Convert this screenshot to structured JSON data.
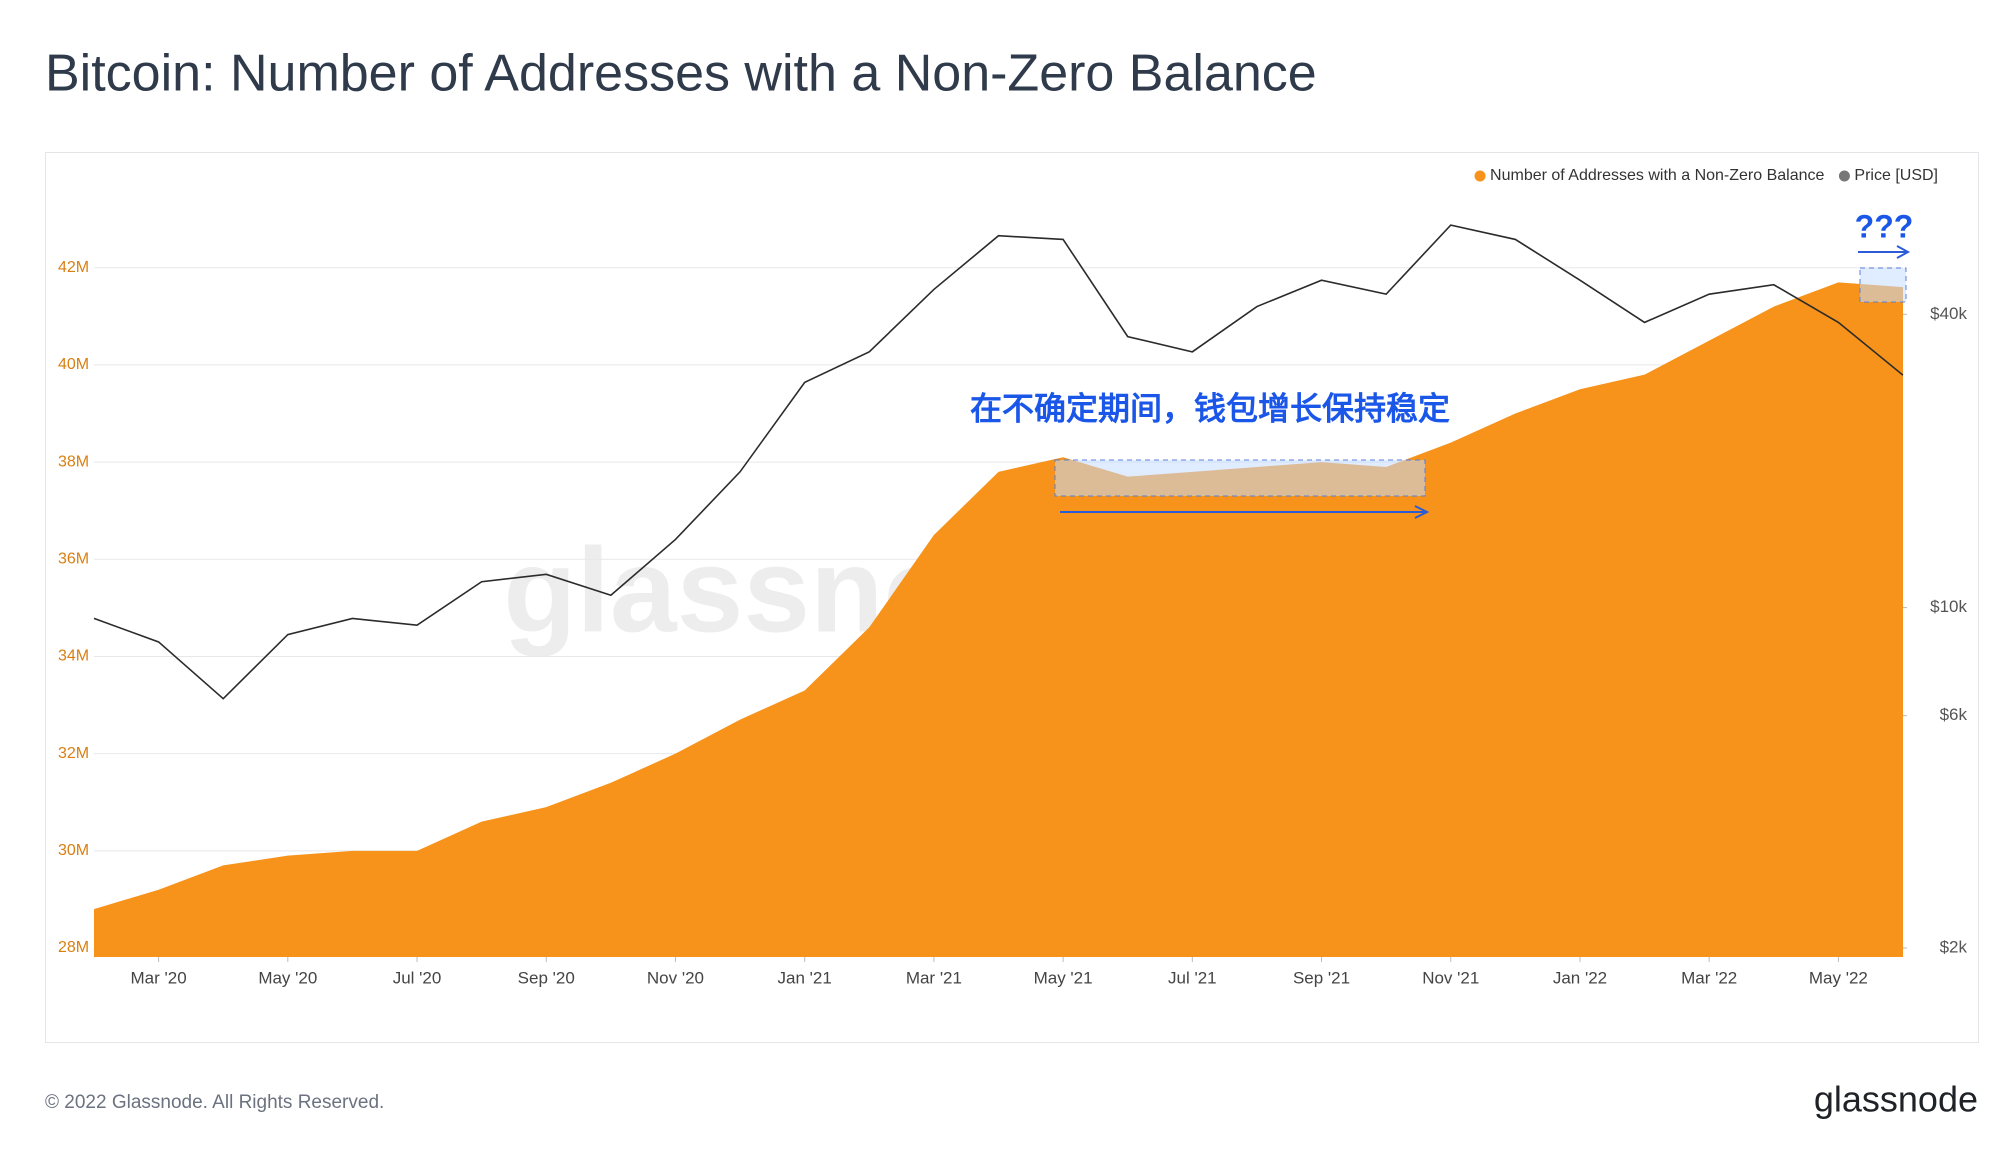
{
  "chart_data": {
    "type": "area-line",
    "title": "Bitcoin: Number of Addresses with a Non-Zero Balance",
    "x": [
      "2020-02",
      "2020-03",
      "2020-04",
      "2020-05",
      "2020-06",
      "2020-07",
      "2020-08",
      "2020-09",
      "2020-10",
      "2020-11",
      "2020-12",
      "2021-01",
      "2021-02",
      "2021-03",
      "2021-04",
      "2021-05",
      "2021-06",
      "2021-07",
      "2021-08",
      "2021-09",
      "2021-10",
      "2021-11",
      "2021-12",
      "2022-01",
      "2022-02",
      "2022-03",
      "2022-04",
      "2022-05",
      "2022-06"
    ],
    "series": [
      {
        "name": "Number of Addresses with a Non-Zero Balance",
        "color": "#f7931a",
        "values": [
          28.8,
          29.2,
          29.7,
          29.9,
          30.0,
          30.0,
          30.6,
          30.9,
          31.4,
          32.0,
          32.7,
          33.3,
          34.6,
          36.5,
          37.8,
          38.1,
          37.7,
          37.8,
          37.9,
          38.0,
          37.9,
          38.4,
          39.0,
          39.5,
          39.8,
          40.5,
          41.2,
          41.7,
          41.6
        ]
      },
      {
        "name": "Price [USD]",
        "color": "#2b2b2b",
        "axis": "y2",
        "values": [
          9500,
          8500,
          6500,
          8800,
          9500,
          9200,
          11300,
          11700,
          10600,
          13800,
          19000,
          29000,
          33500,
          45000,
          58000,
          57000,
          36000,
          33500,
          41500,
          47000,
          44000,
          61000,
          57000,
          47000,
          38500,
          44000,
          46000,
          38500,
          30000
        ]
      }
    ],
    "xlim": [
      "2020-02",
      "2022-06"
    ],
    "xticks": [
      {
        "value": "2020-03",
        "label": "Mar '20"
      },
      {
        "value": "2020-05",
        "label": "May '20"
      },
      {
        "value": "2020-07",
        "label": "Jul '20"
      },
      {
        "value": "2020-09",
        "label": "Sep '20"
      },
      {
        "value": "2020-11",
        "label": "Nov '20"
      },
      {
        "value": "2021-01",
        "label": "Jan '21"
      },
      {
        "value": "2021-03",
        "label": "Mar '21"
      },
      {
        "value": "2021-05",
        "label": "May '21"
      },
      {
        "value": "2021-07",
        "label": "Jul '21"
      },
      {
        "value": "2021-09",
        "label": "Sep '21"
      },
      {
        "value": "2021-11",
        "label": "Nov '21"
      },
      {
        "value": "2022-01",
        "label": "Jan '22"
      },
      {
        "value": "2022-03",
        "label": "Mar '22"
      },
      {
        "value": "2022-05",
        "label": "May '22"
      }
    ],
    "ylim": [
      28,
      43.6
    ],
    "yticks": [
      {
        "value": 28,
        "label": "28M"
      },
      {
        "value": 30,
        "label": "30M"
      },
      {
        "value": 32,
        "label": "32M"
      },
      {
        "value": 34,
        "label": "34M"
      },
      {
        "value": 36,
        "label": "36M"
      },
      {
        "value": 38,
        "label": "38M"
      },
      {
        "value": 40,
        "label": "40M"
      },
      {
        "value": 42,
        "label": "42M"
      }
    ],
    "y2lim": [
      2000,
      72000
    ],
    "y2scale": "log",
    "y2ticks": [
      {
        "value": 2000,
        "label": "$2k"
      },
      {
        "value": 6000,
        "label": "$6k"
      },
      {
        "value": 10000,
        "label": "$10k"
      },
      {
        "value": 40000,
        "label": "$40k"
      }
    ],
    "grid": true,
    "legend": "top-right",
    "annotations": [
      "在不确定期间，钱包增长保持稳定",
      "???"
    ],
    "watermark": "glassnode",
    "footer": "© 2022 Glassnode. All Rights Reserved.",
    "logo": "glassnode"
  }
}
